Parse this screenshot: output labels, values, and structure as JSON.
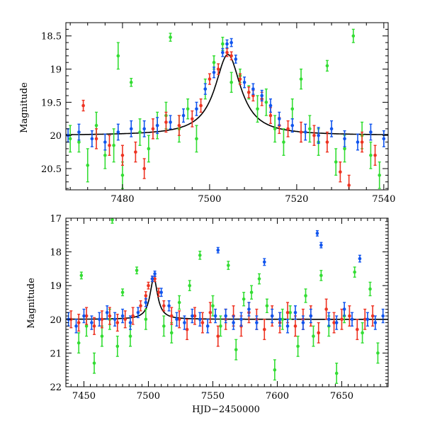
{
  "figure": {
    "xlabel_shared": "HJD−2450000"
  },
  "colors": {
    "green": "#33dd33",
    "red": "#ee3322",
    "blue": "#1155ee",
    "model": "#000000"
  },
  "chart_data": [
    {
      "type": "scatter",
      "name": "zoom",
      "ylabel": "Magnitude",
      "xlabel": "",
      "xlim": [
        7467,
        7541
      ],
      "ylim": [
        20.82,
        18.3
      ],
      "y_inverted": true,
      "xticks": [
        7480,
        7500,
        7520,
        7540
      ],
      "xtick_labels": [
        "7480",
        "7500",
        "7520",
        "7540"
      ],
      "yticks": [
        18.5,
        19,
        19.5,
        20,
        20.5
      ],
      "ytick_labels": [
        "18.5",
        "19",
        "19.5",
        "20",
        "20.5"
      ],
      "model": {
        "type": "lorentzian",
        "t0": 7504.2,
        "baseline": 20.0,
        "amplitude": 1.22,
        "width": 3.6
      },
      "series": [
        {
          "name": "green",
          "color": "#33dd33",
          "x": [
            7468,
            7470,
            7472,
            7474,
            7476,
            7478,
            7479,
            7480,
            7482,
            7484,
            7486,
            7488,
            7490,
            7491,
            7493,
            7495,
            7497,
            7499,
            7501,
            7503,
            7505,
            7507,
            7509,
            7511,
            7513,
            7515,
            7517,
            7519,
            7521,
            7523,
            7525,
            7527,
            7529,
            7531,
            7533,
            7535,
            7537,
            7539
          ],
          "y": [
            20.05,
            20.1,
            20.45,
            19.85,
            20.3,
            20.15,
            18.8,
            20.6,
            19.2,
            19.95,
            20.2,
            19.85,
            19.7,
            18.52,
            19.9,
            19.6,
            20.05,
            19.3,
            18.9,
            18.62,
            19.2,
            19.1,
            19.35,
            19.6,
            19.5,
            19.9,
            20.1,
            19.6,
            19.15,
            19.9,
            20.1,
            18.95,
            20.4,
            20.2,
            18.5,
            20.0,
            20.3,
            20.6
          ],
          "err": [
            0.2,
            0.15,
            0.25,
            0.2,
            0.2,
            0.25,
            0.2,
            0.2,
            0.06,
            0.2,
            0.2,
            0.2,
            0.2,
            0.06,
            0.2,
            0.15,
            0.2,
            0.15,
            0.1,
            0.1,
            0.15,
            0.1,
            0.1,
            0.2,
            0.2,
            0.2,
            0.2,
            0.15,
            0.15,
            0.2,
            0.2,
            0.08,
            0.2,
            0.2,
            0.1,
            0.2,
            0.2,
            0.2
          ]
        },
        {
          "name": "red",
          "color": "#ee3322",
          "x": [
            7471,
            7474,
            7477,
            7480,
            7483,
            7485,
            7487,
            7490,
            7493,
            7496,
            7498,
            7500,
            7502,
            7504,
            7505,
            7507,
            7509,
            7510,
            7512,
            7514,
            7516,
            7518,
            7521,
            7524,
            7527,
            7530,
            7532,
            7535,
            7538
          ],
          "y": [
            19.55,
            20.05,
            20.15,
            20.3,
            20.25,
            20.5,
            19.9,
            19.8,
            19.85,
            19.75,
            19.55,
            19.15,
            19.0,
            18.75,
            18.8,
            19.15,
            19.35,
            19.4,
            19.45,
            19.7,
            19.85,
            19.9,
            19.95,
            20.0,
            20.1,
            20.55,
            20.75,
            20.1,
            20.3
          ],
          "err": [
            0.08,
            0.15,
            0.15,
            0.15,
            0.15,
            0.15,
            0.15,
            0.15,
            0.15,
            0.12,
            0.1,
            0.08,
            0.08,
            0.06,
            0.06,
            0.08,
            0.08,
            0.08,
            0.1,
            0.12,
            0.12,
            0.12,
            0.15,
            0.15,
            0.15,
            0.15,
            0.15,
            0.15,
            0.15
          ]
        },
        {
          "name": "blue",
          "color": "#1155ee",
          "x": [
            7467.5,
            7470,
            7473,
            7476,
            7479,
            7482,
            7485,
            7488,
            7491,
            7494,
            7497,
            7499,
            7501,
            7503,
            7504,
            7505,
            7506,
            7508,
            7510,
            7512,
            7514,
            7516,
            7519,
            7522,
            7525,
            7528,
            7531,
            7534,
            7537,
            7540
          ],
          "y": [
            20.0,
            19.95,
            20.05,
            20.1,
            19.95,
            19.9,
            19.9,
            19.85,
            19.8,
            19.7,
            19.6,
            19.3,
            19.05,
            18.75,
            18.62,
            18.6,
            18.85,
            19.2,
            19.3,
            19.4,
            19.55,
            19.75,
            19.85,
            19.95,
            20.0,
            19.9,
            20.05,
            20.1,
            19.95,
            20.05
          ],
          "err": [
            0.1,
            0.12,
            0.12,
            0.12,
            0.12,
            0.12,
            0.12,
            0.12,
            0.1,
            0.1,
            0.1,
            0.08,
            0.08,
            0.06,
            0.06,
            0.06,
            0.06,
            0.08,
            0.08,
            0.08,
            0.1,
            0.1,
            0.1,
            0.12,
            0.12,
            0.12,
            0.12,
            0.12,
            0.12,
            0.12
          ]
        }
      ]
    },
    {
      "type": "scatter",
      "name": "full",
      "ylabel": "Magnitude",
      "xlabel": "HJD−2450000",
      "xlim": [
        7436,
        7686
      ],
      "ylim": [
        22,
        17
      ],
      "y_inverted": true,
      "xticks": [
        7450,
        7500,
        7550,
        7600,
        7650
      ],
      "xtick_labels": [
        "7450",
        "7500",
        "7550",
        "7600",
        "7650"
      ],
      "yticks": [
        17,
        18,
        19,
        20,
        21,
        22
      ],
      "ytick_labels": [
        "17",
        "18",
        "19",
        "20",
        "21",
        "22"
      ],
      "model": {
        "type": "lorentzian",
        "t0": 7504.2,
        "baseline": 20.0,
        "amplitude": 1.22,
        "width": 3.6
      },
      "series": [
        {
          "name": "green",
          "color": "#33dd33",
          "x": [
            7446,
            7448,
            7452,
            7458,
            7464,
            7470,
            7472,
            7476,
            7480,
            7486,
            7491,
            7498,
            7512,
            7518,
            7524,
            7532,
            7540,
            7550,
            7556,
            7562,
            7568,
            7574,
            7580,
            7586,
            7592,
            7598,
            7604,
            7610,
            7616,
            7622,
            7628,
            7634,
            7640,
            7646,
            7652,
            7660,
            7666,
            7672,
            7678
          ],
          "y": [
            20.7,
            18.7,
            20.2,
            21.3,
            20.5,
            20.0,
            17.05,
            20.8,
            19.2,
            20.5,
            18.55,
            20.0,
            20.2,
            20.4,
            19.5,
            19.0,
            18.1,
            19.6,
            20.2,
            18.4,
            20.9,
            19.4,
            19.2,
            18.8,
            19.6,
            21.5,
            20.0,
            19.8,
            20.8,
            19.3,
            20.5,
            18.7,
            20.2,
            21.6,
            19.9,
            18.6,
            20.4,
            19.1,
            21.0
          ],
          "err": [
            0.3,
            0.1,
            0.3,
            0.3,
            0.3,
            0.3,
            0.1,
            0.3,
            0.1,
            0.3,
            0.1,
            0.3,
            0.3,
            0.3,
            0.2,
            0.15,
            0.12,
            0.3,
            0.3,
            0.12,
            0.3,
            0.2,
            0.2,
            0.15,
            0.2,
            0.3,
            0.3,
            0.2,
            0.3,
            0.2,
            0.3,
            0.15,
            0.3,
            0.3,
            0.2,
            0.15,
            0.3,
            0.2,
            0.3
          ]
        },
        {
          "name": "red",
          "color": "#ee3322",
          "x": [
            7440,
            7446,
            7452,
            7458,
            7464,
            7470,
            7476,
            7482,
            7488,
            7494,
            7498,
            7500,
            7503,
            7505,
            7508,
            7512,
            7518,
            7524,
            7530,
            7536,
            7542,
            7548,
            7554,
            7560,
            7566,
            7572,
            7578,
            7584,
            7590,
            7596,
            7602,
            7608,
            7614,
            7620,
            7626,
            7632,
            7638,
            7644,
            7650,
            7656,
            7662,
            7668,
            7674
          ],
          "y": [
            20.0,
            20.1,
            19.9,
            20.2,
            20.0,
            19.9,
            20.1,
            20.0,
            19.9,
            19.6,
            19.3,
            19.0,
            18.8,
            18.8,
            19.2,
            19.6,
            19.9,
            20.0,
            20.3,
            19.9,
            20.1,
            19.8,
            20.5,
            20.0,
            19.9,
            20.2,
            19.8,
            20.0,
            20.3,
            19.9,
            20.1,
            19.8,
            20.2,
            20.0,
            19.9,
            20.4,
            19.7,
            20.1,
            20.0,
            19.9,
            20.3,
            20.0,
            19.9
          ],
          "err": [
            0.25,
            0.25,
            0.25,
            0.25,
            0.25,
            0.25,
            0.25,
            0.25,
            0.25,
            0.15,
            0.12,
            0.1,
            0.08,
            0.08,
            0.12,
            0.15,
            0.25,
            0.25,
            0.3,
            0.25,
            0.3,
            0.3,
            0.3,
            0.3,
            0.3,
            0.3,
            0.3,
            0.3,
            0.3,
            0.3,
            0.3,
            0.3,
            0.3,
            0.3,
            0.3,
            0.3,
            0.3,
            0.3,
            0.3,
            0.3,
            0.3,
            0.3,
            0.3
          ]
        },
        {
          "name": "blue",
          "color": "#1155ee",
          "x": [
            7438,
            7444,
            7450,
            7456,
            7462,
            7468,
            7474,
            7480,
            7486,
            7492,
            7498,
            7503,
            7505,
            7510,
            7516,
            7522,
            7528,
            7534,
            7540,
            7546,
            7552,
            7554,
            7560,
            7566,
            7572,
            7578,
            7584,
            7590,
            7596,
            7602,
            7608,
            7614,
            7620,
            7626,
            7631,
            7634,
            7640,
            7646,
            7652,
            7658,
            7664,
            7670,
            7676,
            7682
          ],
          "y": [
            20.0,
            20.2,
            19.9,
            20.1,
            20.0,
            19.8,
            20.0,
            19.9,
            20.1,
            19.8,
            19.5,
            18.8,
            18.65,
            19.2,
            19.6,
            20.0,
            20.1,
            19.9,
            20.0,
            20.2,
            19.9,
            17.95,
            19.9,
            20.1,
            20.0,
            19.7,
            20.1,
            18.3,
            19.9,
            20.0,
            20.2,
            19.8,
            20.1,
            19.9,
            17.45,
            17.8,
            20.0,
            20.1,
            19.7,
            20.0,
            18.2,
            20.0,
            20.1,
            19.9
          ],
          "err": [
            0.2,
            0.2,
            0.2,
            0.2,
            0.2,
            0.2,
            0.2,
            0.2,
            0.2,
            0.15,
            0.12,
            0.08,
            0.08,
            0.12,
            0.15,
            0.2,
            0.2,
            0.2,
            0.2,
            0.2,
            0.2,
            0.08,
            0.2,
            0.2,
            0.2,
            0.2,
            0.2,
            0.1,
            0.2,
            0.2,
            0.2,
            0.2,
            0.2,
            0.2,
            0.08,
            0.08,
            0.2,
            0.2,
            0.2,
            0.2,
            0.1,
            0.2,
            0.2,
            0.2
          ]
        }
      ]
    }
  ]
}
